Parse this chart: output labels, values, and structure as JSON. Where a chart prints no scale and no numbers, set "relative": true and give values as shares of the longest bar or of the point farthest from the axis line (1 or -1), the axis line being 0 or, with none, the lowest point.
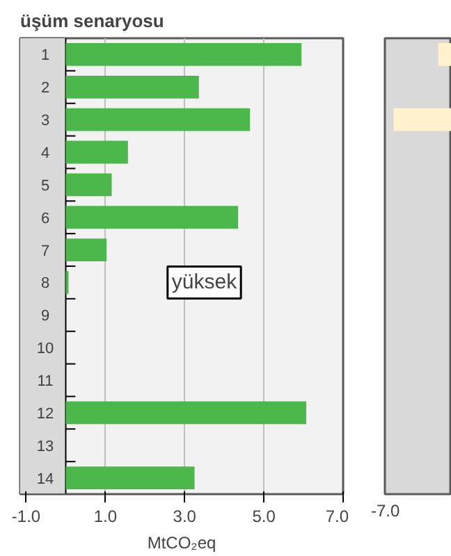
{
  "chart_data": [
    {
      "type": "bar",
      "orientation": "horizontal",
      "title": "üşüm senaryosu",
      "xlabel": "MtCO₂eq",
      "categories": [
        "1",
        "2",
        "3",
        "4",
        "5",
        "6",
        "7",
        "8",
        "9",
        "10",
        "11",
        "12",
        "13",
        "14"
      ],
      "values": [
        5.95,
        3.36,
        4.65,
        1.57,
        1.16,
        4.35,
        1.03,
        0.07,
        0,
        0,
        0,
        6.07,
        0,
        3.25
      ],
      "color": "#4cb84c",
      "xlim": [
        -1.15,
        7.0
      ],
      "xticks": [
        {
          "value": -1.0,
          "label": "-1.0"
        },
        {
          "value": 1.0,
          "label": "1.0"
        },
        {
          "value": 3.0,
          "label": "3.0"
        },
        {
          "value": 5.0,
          "label": "5.0"
        },
        {
          "value": 7.0,
          "label": "7.0"
        }
      ],
      "grid": "x",
      "bands": [
        {
          "axis": "x",
          "from": -1.15,
          "to": 0,
          "color": "#d9d9d9"
        }
      ],
      "annotations": [
        "yüksek"
      ]
    },
    {
      "type": "bar",
      "orientation": "horizontal",
      "relative": true,
      "categories": [
        null,
        null,
        null,
        null,
        null,
        null,
        null,
        null,
        null,
        null,
        null,
        null,
        null,
        null
      ],
      "values": [
        -0.23,
        null,
        -1,
        null,
        null,
        null,
        null,
        null,
        null,
        null,
        null,
        null,
        null,
        null
      ],
      "color": "#fff2cc",
      "annotations": [
        "-7.0"
      ]
    }
  ]
}
